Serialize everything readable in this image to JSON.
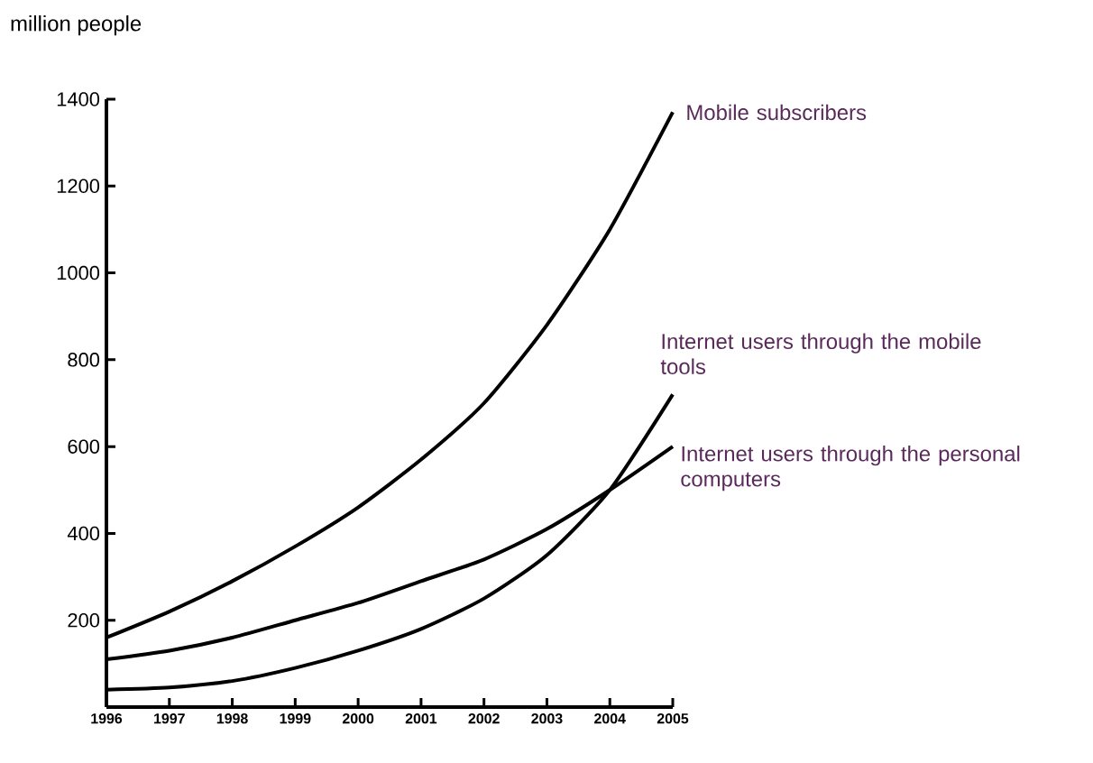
{
  "chart_data": {
    "type": "line",
    "ylabel": "million people",
    "x": [
      1996,
      1997,
      1998,
      1999,
      2000,
      2001,
      2002,
      2003,
      2004,
      2005
    ],
    "xlim": [
      1996,
      2005
    ],
    "xticks": [
      1996,
      1997,
      1998,
      1999,
      2000,
      2001,
      2002,
      2003,
      2004,
      2005
    ],
    "ylim": [
      0,
      1400
    ],
    "yticks": [
      200,
      400,
      600,
      800,
      1000,
      1200,
      1400
    ],
    "grid": false,
    "legend": false,
    "marker": "none",
    "line_style": "solid",
    "series": [
      {
        "name": "Mobile subscribers",
        "color": "#000000",
        "values": [
          160,
          220,
          290,
          370,
          460,
          570,
          700,
          880,
          1100,
          1370
        ]
      },
      {
        "name": "Internet users through the mobile tools",
        "color": "#000000",
        "values": [
          40,
          45,
          60,
          90,
          130,
          180,
          250,
          350,
          500,
          720
        ]
      },
      {
        "name": "Internet users through the personal computers",
        "color": "#000000",
        "values": [
          110,
          130,
          160,
          200,
          240,
          290,
          340,
          410,
          500,
          600
        ]
      }
    ]
  }
}
